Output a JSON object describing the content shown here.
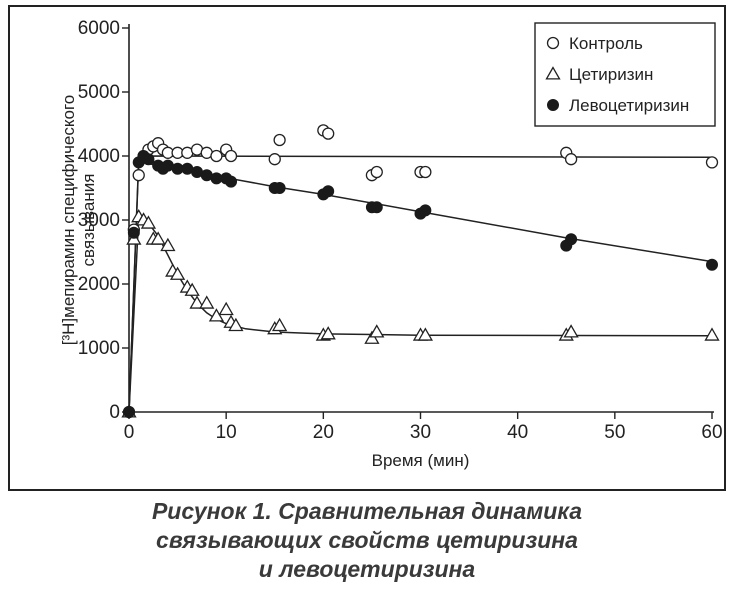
{
  "chart_data": {
    "type": "scatter",
    "title": "",
    "xlabel": "Время (мин)",
    "ylabel": [
      "[³H]мепирамин специфического",
      "связывания"
    ],
    "xlim": [
      0,
      60
    ],
    "ylim": [
      0,
      6000
    ],
    "xticks": [
      0,
      10,
      20,
      30,
      40,
      50,
      60
    ],
    "yticks": [
      0,
      1000,
      2000,
      3000,
      4000,
      5000,
      6000
    ],
    "grid": false,
    "legend_position": "top-right",
    "series": [
      {
        "name": "Контроль",
        "marker": "open-circle",
        "points": [
          [
            0,
            0
          ],
          [
            0.5,
            2850
          ],
          [
            1,
            3700
          ],
          [
            1.5,
            4000
          ],
          [
            2,
            4100
          ],
          [
            2.5,
            4150
          ],
          [
            3,
            4200
          ],
          [
            3.5,
            4100
          ],
          [
            4,
            4050
          ],
          [
            5,
            4050
          ],
          [
            6,
            4050
          ],
          [
            7,
            4100
          ],
          [
            8,
            4050
          ],
          [
            9,
            4000
          ],
          [
            10,
            4100
          ],
          [
            10.5,
            4000
          ],
          [
            15,
            3950
          ],
          [
            15.5,
            4250
          ],
          [
            20,
            4400
          ],
          [
            20.5,
            4350
          ],
          [
            25,
            3700
          ],
          [
            25.5,
            3750
          ],
          [
            30,
            3750
          ],
          [
            30.5,
            3750
          ],
          [
            45,
            4050
          ],
          [
            45.5,
            3950
          ],
          [
            60,
            3900
          ]
        ],
        "fit": [
          [
            0,
            0
          ],
          [
            1,
            3900
          ],
          [
            2,
            4000
          ],
          [
            60,
            3980
          ]
        ]
      },
      {
        "name": "Цетиризин",
        "marker": "open-triangle",
        "points": [
          [
            0,
            0
          ],
          [
            0.5,
            2700
          ],
          [
            1,
            3050
          ],
          [
            1.5,
            3000
          ],
          [
            2,
            2950
          ],
          [
            2.5,
            2700
          ],
          [
            3,
            2700
          ],
          [
            4,
            2600
          ],
          [
            4.5,
            2200
          ],
          [
            5,
            2150
          ],
          [
            6,
            1950
          ],
          [
            6.5,
            1900
          ],
          [
            7,
            1700
          ],
          [
            8,
            1700
          ],
          [
            9,
            1500
          ],
          [
            10,
            1600
          ],
          [
            10.5,
            1400
          ],
          [
            11,
            1350
          ],
          [
            15,
            1300
          ],
          [
            15.5,
            1350
          ],
          [
            20,
            1200
          ],
          [
            20.5,
            1220
          ],
          [
            25,
            1150
          ],
          [
            25.5,
            1250
          ],
          [
            30,
            1200
          ],
          [
            30.5,
            1200
          ],
          [
            45,
            1200
          ],
          [
            45.5,
            1250
          ],
          [
            60,
            1200
          ]
        ],
        "fit": [
          [
            0,
            0
          ],
          [
            1,
            3050
          ],
          [
            2,
            2950
          ],
          [
            3,
            2750
          ],
          [
            4,
            2450
          ],
          [
            5,
            2150
          ],
          [
            6,
            1900
          ],
          [
            7,
            1700
          ],
          [
            8,
            1550
          ],
          [
            9,
            1450
          ],
          [
            10,
            1380
          ],
          [
            12,
            1300
          ],
          [
            15,
            1250
          ],
          [
            20,
            1220
          ],
          [
            30,
            1200
          ],
          [
            60,
            1190
          ]
        ]
      },
      {
        "name": "Левоцетиризин",
        "marker": "filled-circle",
        "points": [
          [
            0,
            0
          ],
          [
            0.5,
            2800
          ],
          [
            1,
            3900
          ],
          [
            1.5,
            4000
          ],
          [
            2,
            3950
          ],
          [
            3,
            3850
          ],
          [
            3.5,
            3800
          ],
          [
            4,
            3850
          ],
          [
            5,
            3800
          ],
          [
            6,
            3800
          ],
          [
            7,
            3750
          ],
          [
            8,
            3700
          ],
          [
            9,
            3650
          ],
          [
            10,
            3650
          ],
          [
            10.5,
            3600
          ],
          [
            15,
            3500
          ],
          [
            15.5,
            3500
          ],
          [
            20,
            3400
          ],
          [
            20.5,
            3450
          ],
          [
            25,
            3200
          ],
          [
            25.5,
            3200
          ],
          [
            30,
            3100
          ],
          [
            30.5,
            3150
          ],
          [
            45,
            2600
          ],
          [
            45.5,
            2700
          ],
          [
            60,
            2300
          ]
        ],
        "fit": [
          [
            0,
            0
          ],
          [
            1,
            3950
          ],
          [
            2,
            3880
          ],
          [
            5,
            3800
          ],
          [
            10,
            3660
          ],
          [
            15,
            3520
          ],
          [
            20,
            3400
          ],
          [
            30,
            3130
          ],
          [
            45,
            2720
          ],
          [
            60,
            2350
          ]
        ]
      }
    ]
  },
  "caption": {
    "line1": "Рисунок 1. Сравнительная динамика",
    "line2": "связывающих свойств цетиризина",
    "line3": "и левоцетиризина"
  }
}
